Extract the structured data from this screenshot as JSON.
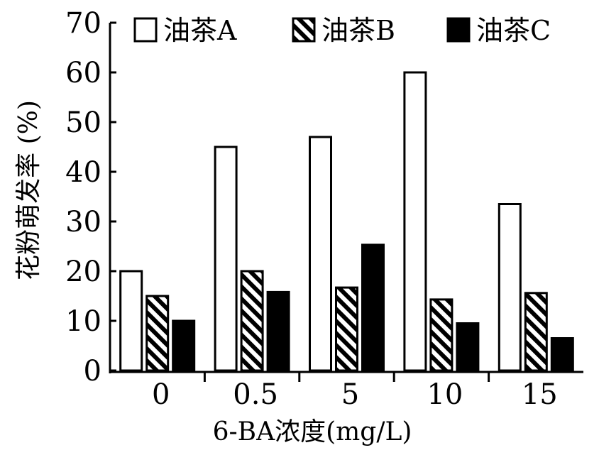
{
  "chart_data": {
    "type": "bar",
    "categories": [
      "0",
      "0.5",
      "5",
      "10",
      "15"
    ],
    "series": [
      {
        "name": "油茶A",
        "style": "hollow",
        "values": [
          20,
          45,
          47,
          60,
          33.5
        ]
      },
      {
        "name": "油茶B",
        "style": "hatched",
        "values": [
          15,
          20,
          16.7,
          14.3,
          15.6
        ]
      },
      {
        "name": "油茶C",
        "style": "solid",
        "values": [
          10,
          15.8,
          25.3,
          9.5,
          6.5
        ]
      }
    ],
    "xlabel": "6-BA浓度(mg/L)",
    "ylabel": "花粉萌发率 (%)",
    "ylim": [
      0,
      70
    ],
    "yticks": [
      0,
      10,
      20,
      30,
      40,
      50,
      60,
      70
    ],
    "grid": false,
    "legend_position": "top",
    "colors": {
      "ylabel": "#4a1d0f",
      "bar_stroke": "#000000",
      "bar_fill_solid": "#000000",
      "bar_fill_hollow": "#ffffff"
    }
  }
}
